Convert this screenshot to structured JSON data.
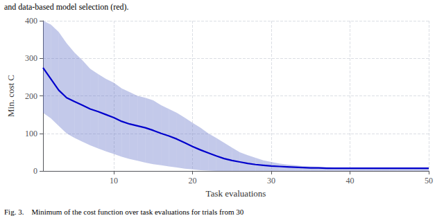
{
  "chart_data": {
    "type": "line",
    "annotations": [
      "and data-based model selection (red).",
      "Fig. 3.    Minimum of the cost function over task evaluations for trials from 30"
    ],
    "xlabel": "Task evaluations",
    "ylabel": "Min. cost C",
    "x": [
      1,
      2,
      3,
      4,
      5,
      6,
      7,
      8,
      9,
      10,
      11,
      12,
      13,
      14,
      15,
      16,
      17,
      18,
      19,
      20,
      21,
      22,
      23,
      24,
      25,
      26,
      27,
      28,
      29,
      30,
      31,
      32,
      33,
      34,
      35,
      36,
      37,
      38,
      39,
      40,
      41,
      42,
      43,
      44,
      45,
      46,
      47,
      48,
      49,
      50
    ],
    "series": [
      {
        "color": "#0000cc",
        "values": [
          275,
          245,
          215,
          195,
          185,
          175,
          165,
          158,
          150,
          142,
          132,
          125,
          120,
          115,
          108,
          100,
          93,
          85,
          75,
          65,
          56,
          48,
          40,
          33,
          28,
          24,
          20,
          17,
          15,
          13,
          12,
          11,
          10,
          9,
          8,
          8,
          7,
          7,
          7,
          7,
          7,
          7,
          7,
          7,
          7,
          7,
          7,
          7,
          7,
          7
        ]
      }
    ],
    "band": {
      "color": "#6070c8",
      "upper": [
        400,
        390,
        370,
        340,
        315,
        295,
        272,
        258,
        245,
        235,
        220,
        210,
        200,
        195,
        188,
        175,
        165,
        155,
        142,
        128,
        115,
        100,
        88,
        75,
        62,
        50,
        42,
        35,
        28,
        24,
        20,
        17,
        15,
        13,
        12,
        11,
        10,
        9,
        9,
        8,
        8,
        8,
        7,
        7,
        7,
        7,
        7,
        7,
        7,
        7
      ],
      "lower": [
        155,
        140,
        120,
        100,
        88,
        78,
        68,
        60,
        52,
        45,
        38,
        32,
        27,
        22,
        18,
        15,
        12,
        9,
        6,
        4,
        2,
        1,
        0,
        0,
        0,
        0,
        0,
        0,
        0,
        0,
        0,
        0,
        0,
        0,
        0,
        0,
        0,
        0,
        0,
        0,
        0,
        0,
        0,
        0,
        0,
        0,
        0,
        0,
        0,
        0
      ]
    },
    "xlim": [
      1,
      50
    ],
    "ylim": [
      0,
      400
    ],
    "xticks": [
      10,
      20,
      30,
      40,
      50
    ],
    "yticks": [
      0,
      100,
      200,
      300,
      400
    ],
    "grid": true
  }
}
